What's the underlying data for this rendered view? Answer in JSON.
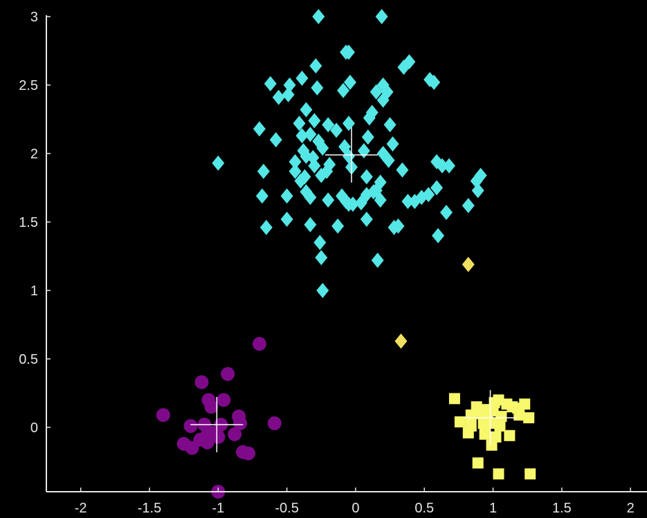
{
  "chart_data": {
    "type": "scatter",
    "xlim": [
      -2.25,
      2.12
    ],
    "ylim": [
      -0.47,
      3.0
    ],
    "xticks": [
      -2,
      -1.5,
      -1,
      -0.5,
      0,
      0.5,
      1,
      1.5,
      2
    ],
    "yticks": [
      0,
      0.5,
      1,
      1.5,
      2,
      2.5,
      3
    ],
    "xtick_labels": [
      "-2",
      "-1.5",
      "-1",
      "-0.5",
      "0",
      "0.5",
      "1",
      "1.5",
      "2"
    ],
    "ytick_labels": [
      "0",
      "0.5",
      "1",
      "1.5",
      "2",
      "2.5",
      "3"
    ],
    "grid": false,
    "background": "#000000",
    "axis_color": "#e6e6e6",
    "series": [
      {
        "marker": "diamond",
        "color": "#55e6e6",
        "points": [
          [
            -0.27,
            3.0
          ],
          [
            0.19,
            3.0
          ],
          [
            -0.07,
            2.74
          ],
          [
            -0.05,
            2.74
          ],
          [
            0.35,
            2.63
          ],
          [
            0.39,
            2.67
          ],
          [
            -0.29,
            2.64
          ],
          [
            -0.62,
            2.51
          ],
          [
            -0.48,
            2.5
          ],
          [
            -0.39,
            2.55
          ],
          [
            -0.56,
            2.41
          ],
          [
            -0.49,
            2.43
          ],
          [
            -0.28,
            2.48
          ],
          [
            -0.04,
            2.52
          ],
          [
            -0.09,
            2.46
          ],
          [
            0.15,
            2.45
          ],
          [
            0.2,
            2.5
          ],
          [
            0.23,
            2.45
          ],
          [
            0.2,
            2.39
          ],
          [
            0.54,
            2.54
          ],
          [
            0.57,
            2.52
          ],
          [
            -0.7,
            2.18
          ],
          [
            -0.58,
            2.1
          ],
          [
            -0.41,
            2.22
          ],
          [
            -0.36,
            2.32
          ],
          [
            -0.3,
            2.24
          ],
          [
            -0.39,
            2.13
          ],
          [
            -0.33,
            2.14
          ],
          [
            -0.2,
            2.21
          ],
          [
            -0.14,
            2.17
          ],
          [
            -0.05,
            2.22
          ],
          [
            0.1,
            2.26
          ],
          [
            0.12,
            2.3
          ],
          [
            0.25,
            2.21
          ],
          [
            0.09,
            2.12
          ],
          [
            0.27,
            2.07
          ],
          [
            -0.27,
            2.09
          ],
          [
            -0.38,
            2.02
          ],
          [
            -0.44,
            1.94
          ],
          [
            -0.36,
            1.98
          ],
          [
            -0.31,
            1.97
          ],
          [
            -0.24,
            2.04
          ],
          [
            -0.3,
            1.91
          ],
          [
            -0.19,
            1.92
          ],
          [
            -0.08,
            2.05
          ],
          [
            -0.05,
            1.98
          ],
          [
            0.06,
            2.02
          ],
          [
            0.2,
            2.0
          ],
          [
            0.24,
            1.95
          ],
          [
            0.34,
            1.88
          ],
          [
            0.59,
            1.94
          ],
          [
            0.63,
            1.91
          ],
          [
            0.68,
            1.91
          ],
          [
            -1.0,
            1.93
          ],
          [
            -0.67,
            1.87
          ],
          [
            -0.44,
            1.87
          ],
          [
            -0.4,
            1.8
          ],
          [
            -0.37,
            1.83
          ],
          [
            -0.25,
            1.84
          ],
          [
            -0.21,
            1.87
          ],
          [
            -0.03,
            1.9
          ],
          [
            0.08,
            1.83
          ],
          [
            0.18,
            1.79
          ],
          [
            0.38,
            1.65
          ],
          [
            0.43,
            1.65
          ],
          [
            0.48,
            1.68
          ],
          [
            0.53,
            1.7
          ],
          [
            0.59,
            1.75
          ],
          [
            0.66,
            1.57
          ],
          [
            0.82,
            1.62
          ],
          [
            0.88,
            1.8
          ],
          [
            0.91,
            1.84
          ],
          [
            0.89,
            1.73
          ],
          [
            -0.68,
            1.69
          ],
          [
            -0.5,
            1.69
          ],
          [
            -0.36,
            1.72
          ],
          [
            -0.33,
            1.68
          ],
          [
            -0.2,
            1.66
          ],
          [
            -0.1,
            1.69
          ],
          [
            -0.07,
            1.65
          ],
          [
            -0.02,
            1.63
          ],
          [
            0.04,
            1.64
          ],
          [
            0.08,
            1.7
          ],
          [
            0.13,
            1.72
          ],
          [
            0.18,
            1.66
          ],
          [
            0.15,
            1.73
          ],
          [
            -0.65,
            1.46
          ],
          [
            -0.5,
            1.52
          ],
          [
            -0.33,
            1.48
          ],
          [
            -0.13,
            1.47
          ],
          [
            -0.05,
            1.63
          ],
          [
            0.08,
            1.52
          ],
          [
            0.28,
            1.46
          ],
          [
            0.31,
            1.47
          ],
          [
            0.6,
            1.4
          ],
          [
            -0.26,
            1.35
          ],
          [
            -0.25,
            1.24
          ],
          [
            0.16,
            1.22
          ],
          [
            -0.24,
            1.0
          ]
        ]
      },
      {
        "marker": "diamond",
        "color": "#f0e060",
        "points": [
          [
            0.82,
            1.19
          ],
          [
            0.33,
            0.63
          ]
        ]
      },
      {
        "marker": "circle",
        "color": "#7e0a8a",
        "points": [
          [
            -0.7,
            0.61
          ],
          [
            -0.93,
            0.39
          ],
          [
            -1.12,
            0.33
          ],
          [
            -1.07,
            0.2
          ],
          [
            -0.96,
            0.2
          ],
          [
            -1.05,
            0.15
          ],
          [
            -1.4,
            0.09
          ],
          [
            -0.85,
            0.08
          ],
          [
            -0.59,
            0.03
          ],
          [
            -1.2,
            0.01
          ],
          [
            -1.1,
            0.02
          ],
          [
            -0.98,
            0.02
          ],
          [
            -0.84,
            0.03
          ],
          [
            -1.08,
            -0.06
          ],
          [
            -1.04,
            -0.04
          ],
          [
            -0.88,
            -0.05
          ],
          [
            -1.13,
            -0.09
          ],
          [
            -1.0,
            -0.07
          ],
          [
            -1.25,
            -0.12
          ],
          [
            -1.19,
            -0.15
          ],
          [
            -1.08,
            -0.11
          ],
          [
            -0.82,
            -0.18
          ],
          [
            -0.78,
            -0.19
          ],
          [
            -1.0,
            -0.47
          ]
        ]
      },
      {
        "marker": "square",
        "color": "#f8f86c",
        "points": [
          [
            0.72,
            0.21
          ],
          [
            0.88,
            0.15
          ],
          [
            0.94,
            0.13
          ],
          [
            1.01,
            0.18
          ],
          [
            1.04,
            0.2
          ],
          [
            1.1,
            0.17
          ],
          [
            1.14,
            0.15
          ],
          [
            1.18,
            0.14
          ],
          [
            1.23,
            0.17
          ],
          [
            0.84,
            0.09
          ],
          [
            0.9,
            0.1
          ],
          [
            0.96,
            0.08
          ],
          [
            1.0,
            0.12
          ],
          [
            1.06,
            0.08
          ],
          [
            1.19,
            0.09
          ],
          [
            1.26,
            0.07
          ],
          [
            0.76,
            0.04
          ],
          [
            0.84,
            0.01
          ],
          [
            0.93,
            0.03
          ],
          [
            0.98,
            0.03
          ],
          [
            1.05,
            0.01
          ],
          [
            0.82,
            -0.04
          ],
          [
            0.94,
            -0.05
          ],
          [
            1.02,
            -0.07
          ],
          [
            1.12,
            -0.06
          ],
          [
            0.99,
            -0.13
          ],
          [
            0.89,
            -0.26
          ],
          [
            1.04,
            -0.34
          ],
          [
            1.27,
            -0.34
          ]
        ]
      }
    ],
    "centroids": [
      {
        "x": -0.03,
        "y": 1.99,
        "color": "#ffffff"
      },
      {
        "x": -1.01,
        "y": 0.02,
        "color": "#ffffff"
      },
      {
        "x": 0.98,
        "y": 0.07,
        "color": "#ffffff"
      }
    ]
  }
}
